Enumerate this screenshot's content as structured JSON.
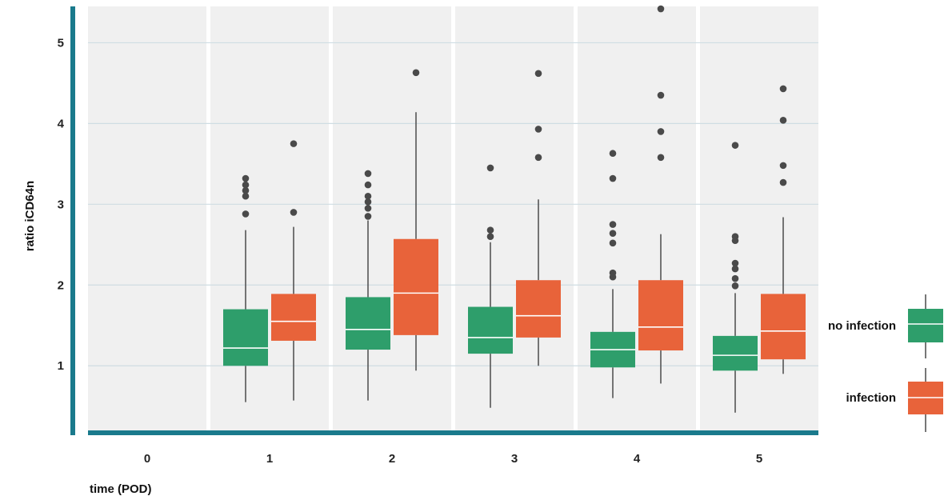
{
  "chart_data": {
    "type": "box",
    "xlabel": "time (POD)",
    "ylabel": "ratio iCD64n",
    "categories": [
      "0",
      "1",
      "2",
      "3",
      "4",
      "5"
    ],
    "yticks": [
      1,
      2,
      3,
      4,
      5
    ],
    "ylim": [
      0.2,
      5.45
    ],
    "grid": true,
    "legend_position": "right",
    "series": [
      {
        "name": "no infection",
        "color": "#2e9e6b",
        "boxes": [
          null,
          {
            "whisker_low": 0.55,
            "q1": 1.0,
            "median": 1.22,
            "q3": 1.7,
            "whisker_high": 2.68,
            "outliers": [
              2.88,
              3.1,
              3.17,
              3.24,
              3.32
            ]
          },
          {
            "whisker_low": 0.57,
            "q1": 1.2,
            "median": 1.45,
            "q3": 1.85,
            "whisker_high": 2.8,
            "outliers": [
              2.85,
              2.95,
              3.03,
              3.1,
              3.24,
              3.38
            ]
          },
          {
            "whisker_low": 0.48,
            "q1": 1.15,
            "median": 1.35,
            "q3": 1.73,
            "whisker_high": 2.53,
            "outliers": [
              2.6,
              2.68,
              3.45
            ]
          },
          {
            "whisker_low": 0.6,
            "q1": 0.98,
            "median": 1.2,
            "q3": 1.42,
            "whisker_high": 1.95,
            "outliers": [
              2.1,
              2.15,
              2.52,
              2.64,
              2.75,
              3.32,
              3.63
            ]
          },
          {
            "whisker_low": 0.42,
            "q1": 0.94,
            "median": 1.13,
            "q3": 1.37,
            "whisker_high": 1.9,
            "outliers": [
              1.99,
              2.08,
              2.2,
              2.27,
              2.55,
              2.6,
              3.73
            ]
          }
        ]
      },
      {
        "name": "infection",
        "color": "#e8633a",
        "boxes": [
          null,
          {
            "whisker_low": 0.57,
            "q1": 1.31,
            "median": 1.55,
            "q3": 1.89,
            "whisker_high": 2.72,
            "outliers": [
              2.9,
              3.75
            ]
          },
          {
            "whisker_low": 0.94,
            "q1": 1.38,
            "median": 1.9,
            "q3": 2.57,
            "whisker_high": 4.14,
            "outliers": [
              4.63
            ]
          },
          {
            "whisker_low": 1.0,
            "q1": 1.35,
            "median": 1.62,
            "q3": 2.06,
            "whisker_high": 3.06,
            "outliers": [
              3.58,
              3.93,
              4.62
            ]
          },
          {
            "whisker_low": 0.78,
            "q1": 1.19,
            "median": 1.48,
            "q3": 2.06,
            "whisker_high": 2.63,
            "outliers": [
              3.58,
              3.9,
              4.35,
              5.42
            ]
          },
          {
            "whisker_low": 0.9,
            "q1": 1.08,
            "median": 1.43,
            "q3": 1.89,
            "whisker_high": 2.84,
            "outliers": [
              3.27,
              3.48,
              4.04,
              4.43
            ]
          }
        ]
      }
    ]
  }
}
